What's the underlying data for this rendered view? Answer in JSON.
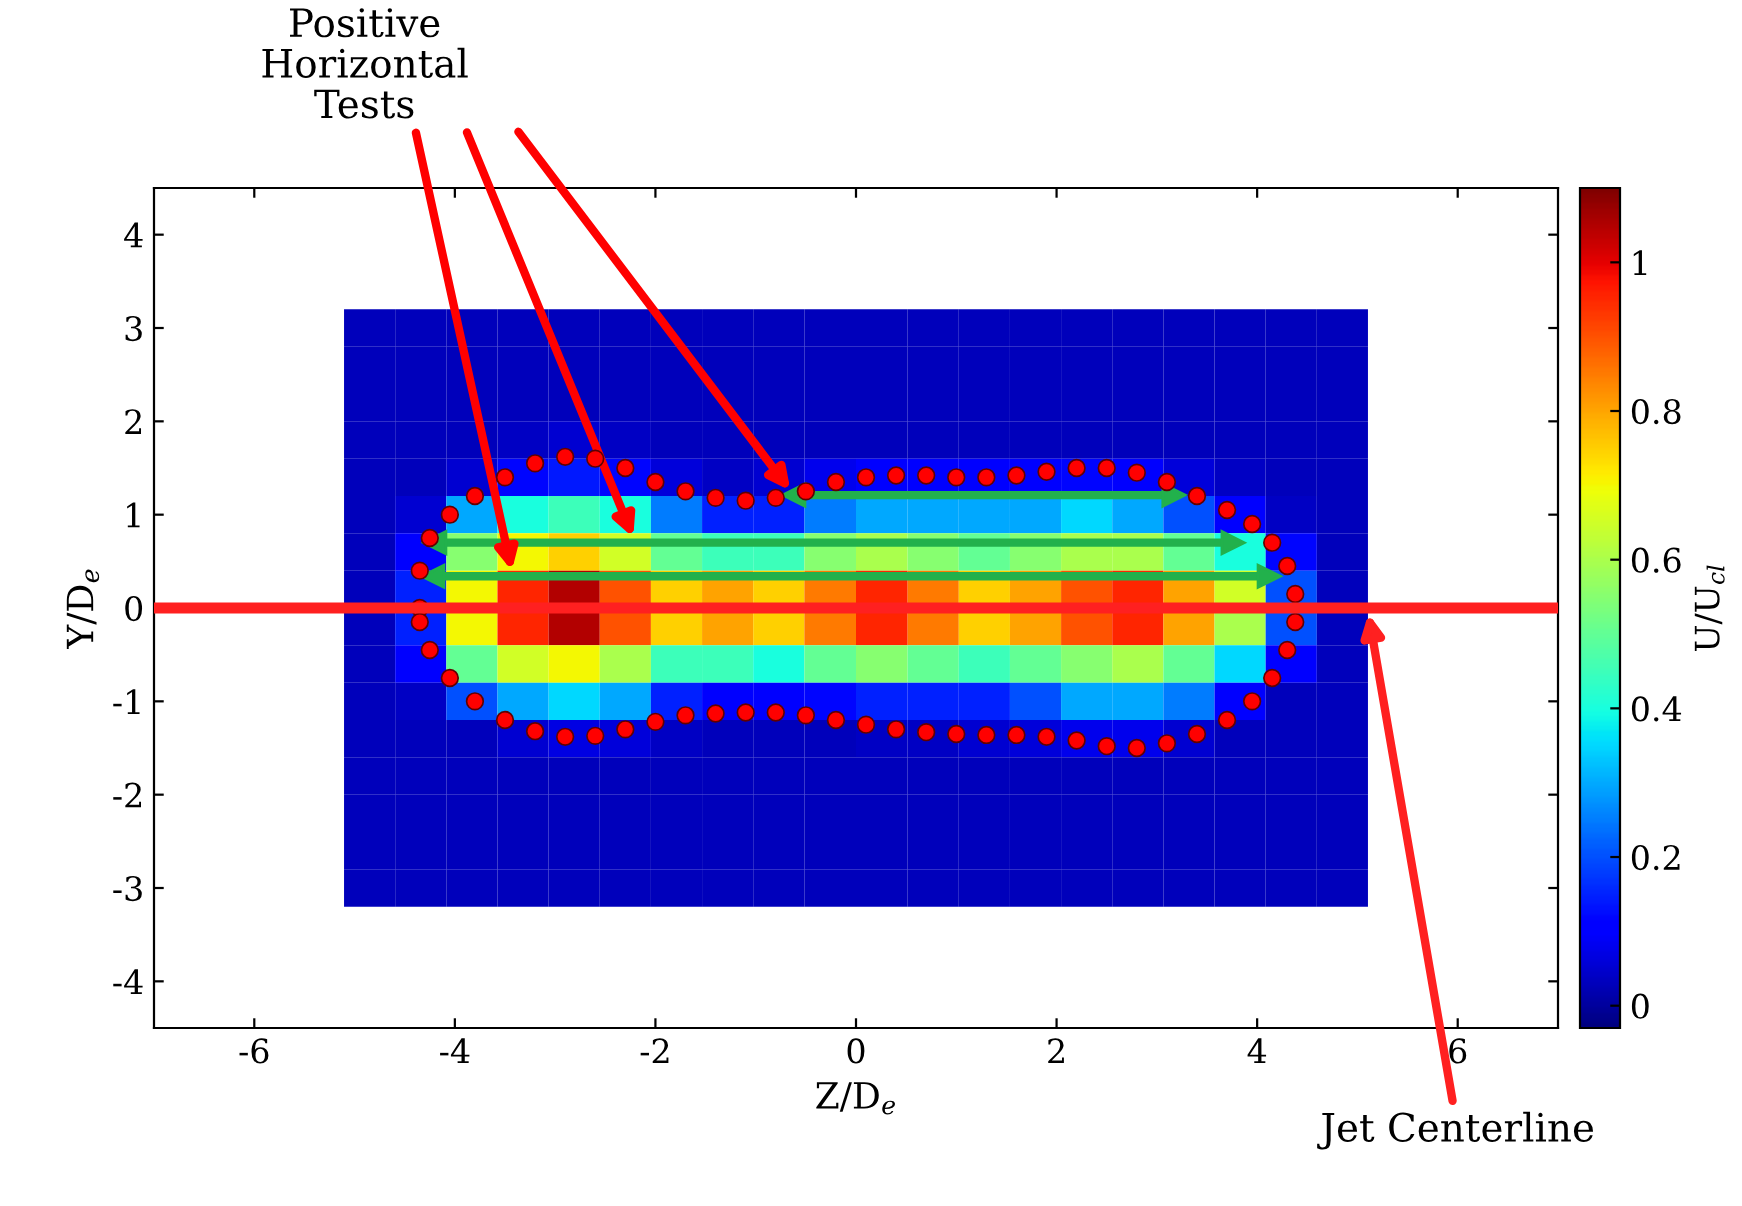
{
  "chart_data": {
    "type": "heatmap",
    "xlabel": "Z/D$_{e}$",
    "ylabel": "Y/D$_{e}$",
    "clabel": "U/U$_{cl}$",
    "xlim": [
      -7,
      7
    ],
    "xticks": [
      -6,
      -4,
      -2,
      0,
      2,
      4,
      6
    ],
    "ylim": [
      -4.5,
      4.5
    ],
    "yticks": [
      -4,
      -3,
      -2,
      -1,
      0,
      1,
      2,
      3,
      4
    ],
    "clim": [
      -0.03,
      1.1
    ],
    "cticks": [
      0,
      0.2,
      0.4,
      0.6,
      0.8,
      1
    ],
    "x": [
      -4.85,
      -4.34,
      -3.83,
      -3.32,
      -2.81,
      -2.3,
      -1.79,
      -1.28,
      -0.77,
      -0.26,
      0.26,
      0.77,
      1.28,
      1.79,
      2.3,
      2.81,
      3.32,
      3.83,
      4.34,
      4.85
    ],
    "y": [
      3.0,
      2.6,
      2.2,
      1.8,
      1.4,
      1.0,
      0.6,
      0.2,
      -0.2,
      -0.6,
      -1.0,
      -1.4,
      -1.8,
      -2.2,
      -2.6,
      -3.0
    ],
    "cells": [
      [
        0.03,
        0.03,
        0.03,
        0.03,
        0.03,
        0.03,
        0.03,
        0.03,
        0.03,
        0.03,
        0.03,
        0.03,
        0.03,
        0.03,
        0.03,
        0.03,
        0.03,
        0.03,
        0.03,
        0.03
      ],
      [
        0.03,
        0.03,
        0.03,
        0.03,
        0.03,
        0.03,
        0.03,
        0.03,
        0.03,
        0.03,
        0.03,
        0.03,
        0.03,
        0.03,
        0.03,
        0.03,
        0.03,
        0.03,
        0.03,
        0.03
      ],
      [
        0.03,
        0.03,
        0.03,
        0.03,
        0.03,
        0.03,
        0.03,
        0.03,
        0.03,
        0.03,
        0.03,
        0.03,
        0.03,
        0.03,
        0.03,
        0.03,
        0.03,
        0.03,
        0.03,
        0.03
      ],
      [
        0.03,
        0.03,
        0.03,
        0.04,
        0.05,
        0.04,
        0.03,
        0.03,
        0.03,
        0.03,
        0.03,
        0.03,
        0.03,
        0.03,
        0.03,
        0.03,
        0.03,
        0.03,
        0.03,
        0.03
      ],
      [
        0.03,
        0.03,
        0.05,
        0.12,
        0.14,
        0.12,
        0.06,
        0.04,
        0.05,
        0.08,
        0.1,
        0.1,
        0.1,
        0.1,
        0.12,
        0.1,
        0.06,
        0.04,
        0.03,
        0.03
      ],
      [
        0.03,
        0.05,
        0.3,
        0.4,
        0.45,
        0.4,
        0.25,
        0.15,
        0.15,
        0.25,
        0.3,
        0.3,
        0.3,
        0.3,
        0.35,
        0.3,
        0.2,
        0.1,
        0.04,
        0.03
      ],
      [
        0.03,
        0.1,
        0.55,
        0.7,
        0.75,
        0.65,
        0.5,
        0.45,
        0.45,
        0.55,
        0.6,
        0.55,
        0.5,
        0.55,
        0.6,
        0.6,
        0.5,
        0.4,
        0.12,
        0.03
      ],
      [
        0.03,
        0.15,
        0.7,
        0.95,
        1.05,
        0.9,
        0.75,
        0.8,
        0.75,
        0.85,
        0.95,
        0.85,
        0.75,
        0.8,
        0.9,
        0.95,
        0.8,
        0.65,
        0.2,
        0.03
      ],
      [
        0.03,
        0.15,
        0.7,
        0.95,
        1.05,
        0.9,
        0.75,
        0.8,
        0.75,
        0.85,
        0.95,
        0.85,
        0.75,
        0.8,
        0.9,
        0.95,
        0.8,
        0.6,
        0.2,
        0.03
      ],
      [
        0.03,
        0.1,
        0.5,
        0.65,
        0.7,
        0.6,
        0.45,
        0.45,
        0.4,
        0.5,
        0.55,
        0.5,
        0.45,
        0.5,
        0.55,
        0.6,
        0.5,
        0.35,
        0.1,
        0.03
      ],
      [
        0.03,
        0.04,
        0.2,
        0.3,
        0.35,
        0.3,
        0.15,
        0.1,
        0.1,
        0.12,
        0.15,
        0.15,
        0.15,
        0.2,
        0.3,
        0.3,
        0.25,
        0.1,
        0.03,
        0.03
      ],
      [
        0.03,
        0.03,
        0.03,
        0.05,
        0.07,
        0.06,
        0.04,
        0.03,
        0.03,
        0.03,
        0.04,
        0.04,
        0.05,
        0.06,
        0.08,
        0.08,
        0.05,
        0.03,
        0.03,
        0.03
      ],
      [
        0.03,
        0.03,
        0.03,
        0.03,
        0.03,
        0.03,
        0.03,
        0.03,
        0.03,
        0.03,
        0.03,
        0.03,
        0.03,
        0.03,
        0.03,
        0.03,
        0.03,
        0.03,
        0.03,
        0.03
      ],
      [
        0.03,
        0.03,
        0.03,
        0.03,
        0.03,
        0.03,
        0.03,
        0.03,
        0.03,
        0.03,
        0.03,
        0.03,
        0.03,
        0.03,
        0.03,
        0.03,
        0.03,
        0.03,
        0.03,
        0.03
      ],
      [
        0.03,
        0.03,
        0.03,
        0.03,
        0.03,
        0.03,
        0.03,
        0.03,
        0.03,
        0.03,
        0.03,
        0.03,
        0.03,
        0.03,
        0.03,
        0.03,
        0.03,
        0.03,
        0.03,
        0.03
      ],
      [
        0.03,
        0.03,
        0.03,
        0.03,
        0.03,
        0.03,
        0.03,
        0.03,
        0.03,
        0.03,
        0.03,
        0.03,
        0.03,
        0.03,
        0.03,
        0.03,
        0.03,
        0.03,
        0.03,
        0.03
      ]
    ],
    "series": [
      {
        "type": "scatter",
        "color": "#ff0000",
        "marker": "circle",
        "x": [
          -4.35,
          -4.35,
          -4.25,
          -4.05,
          -3.8,
          -3.5,
          -3.2,
          -2.9,
          -2.6,
          -2.3,
          -2.0,
          -1.7,
          -1.4,
          -1.1,
          -0.8,
          -0.5,
          -0.2,
          0.1,
          0.4,
          0.7,
          1.0,
          1.3,
          1.6,
          1.9,
          2.2,
          2.5,
          2.8,
          3.1,
          3.4,
          3.7,
          3.95,
          4.15,
          4.3,
          4.38,
          4.38,
          4.3,
          4.15,
          3.95,
          3.7,
          3.4,
          3.1,
          2.8,
          2.5,
          2.2,
          1.9,
          1.6,
          1.3,
          1.0,
          0.7,
          0.4,
          0.1,
          -0.2,
          -0.5,
          -0.8,
          -1.1,
          -1.4,
          -1.7,
          -2.0,
          -2.3,
          -2.6,
          -2.9,
          -3.2,
          -3.5,
          -3.8,
          -4.05,
          -4.25,
          -4.35
        ],
        "values": [
          0.0,
          0.4,
          0.75,
          1.0,
          1.2,
          1.4,
          1.55,
          1.62,
          1.6,
          1.5,
          1.35,
          1.25,
          1.18,
          1.15,
          1.18,
          1.25,
          1.35,
          1.4,
          1.42,
          1.42,
          1.4,
          1.4,
          1.42,
          1.46,
          1.5,
          1.5,
          1.45,
          1.35,
          1.2,
          1.05,
          0.9,
          0.7,
          0.45,
          0.15,
          -0.15,
          -0.45,
          -0.75,
          -1.0,
          -1.2,
          -1.35,
          -1.45,
          -1.5,
          -1.48,
          -1.42,
          -1.38,
          -1.36,
          -1.36,
          -1.35,
          -1.33,
          -1.3,
          -1.25,
          -1.2,
          -1.15,
          -1.12,
          -1.12,
          -1.13,
          -1.15,
          -1.22,
          -1.3,
          -1.37,
          -1.38,
          -1.32,
          -1.2,
          -1.0,
          -0.75,
          -0.45,
          -0.15
        ]
      },
      {
        "type": "line",
        "color": "#22b14c",
        "marker": "triangle",
        "x": [
          -0.62,
          3.17
        ],
        "values": [
          1.21,
          1.21
        ]
      },
      {
        "type": "line",
        "color": "#22b14c",
        "marker": "triangle",
        "x": [
          -4.2,
          3.76
        ],
        "values": [
          0.7,
          0.7
        ]
      },
      {
        "type": "line",
        "color": "#22b14c",
        "marker": "triangle",
        "x": [
          -4.22,
          4.12
        ],
        "values": [
          0.34,
          0.34
        ]
      }
    ],
    "ref_lines": [
      {
        "axis": "y",
        "value": 0,
        "label": "Jet Centerline",
        "color": "#ff2020"
      }
    ],
    "annotations": [
      "Positive\nHorizontal\nTests"
    ],
    "grid": false,
    "legend": false
  }
}
